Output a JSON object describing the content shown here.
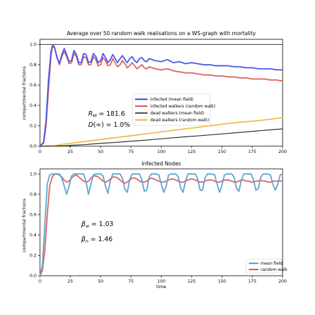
{
  "chart_data": [
    {
      "type": "line",
      "title": "Average over 50 random walk realisations on a WS-graph with mortality",
      "xlabel": "",
      "ylabel": "compartmental fractions",
      "xlim": [
        0,
        200
      ],
      "ylim": [
        0,
        1.05
      ],
      "xticks": [
        "0",
        "25",
        "50",
        "75",
        "100",
        "125",
        "150",
        "175",
        "200"
      ],
      "yticks": [
        "0.0",
        "0.2",
        "0.4",
        "0.6",
        "0.8",
        "1.0"
      ],
      "reference_line": 1.0,
      "legend_position": "center",
      "annotations": [
        "R_M = 181.6",
        "D(∞) = 1.0%"
      ],
      "series": [
        {
          "name": "infected (mean field)",
          "color": "#4455e8",
          "x": [
            0,
            3,
            5,
            7,
            9,
            10,
            11,
            12,
            14,
            16,
            18,
            20,
            22,
            24,
            26,
            28,
            30,
            32,
            34,
            36,
            38,
            40,
            42,
            44,
            46,
            48,
            50,
            52,
            54,
            56,
            58,
            60,
            62,
            64,
            66,
            68,
            70,
            72,
            74,
            76,
            78,
            80,
            82,
            84,
            86,
            88,
            90,
            95,
            100,
            105,
            110,
            115,
            120,
            125,
            130,
            135,
            140,
            145,
            150,
            155,
            160,
            165,
            170,
            175,
            180,
            185,
            190,
            195,
            200
          ],
          "values": [
            0.0,
            0.04,
            0.25,
            0.65,
            0.92,
            0.98,
            0.99,
            0.97,
            0.87,
            0.81,
            0.9,
            0.96,
            0.9,
            0.83,
            0.84,
            0.94,
            0.9,
            0.82,
            0.82,
            0.91,
            0.9,
            0.82,
            0.83,
            0.91,
            0.88,
            0.82,
            0.84,
            0.91,
            0.87,
            0.82,
            0.85,
            0.9,
            0.86,
            0.82,
            0.86,
            0.89,
            0.85,
            0.82,
            0.86,
            0.88,
            0.84,
            0.82,
            0.86,
            0.87,
            0.84,
            0.83,
            0.86,
            0.84,
            0.83,
            0.85,
            0.82,
            0.83,
            0.81,
            0.82,
            0.81,
            0.8,
            0.8,
            0.79,
            0.79,
            0.79,
            0.78,
            0.78,
            0.77,
            0.77,
            0.76,
            0.76,
            0.76,
            0.75,
            0.75
          ]
        },
        {
          "name": "infected walkers  (random walk)",
          "color": "#d9605f",
          "x": [
            0,
            3,
            5,
            7,
            9,
            10,
            11,
            12,
            14,
            16,
            18,
            20,
            22,
            24,
            26,
            28,
            30,
            32,
            34,
            36,
            38,
            40,
            42,
            44,
            46,
            48,
            50,
            52,
            54,
            56,
            58,
            60,
            62,
            64,
            66,
            68,
            70,
            72,
            74,
            76,
            78,
            80,
            82,
            84,
            86,
            88,
            90,
            95,
            100,
            105,
            110,
            115,
            120,
            125,
            130,
            135,
            140,
            145,
            150,
            155,
            160,
            165,
            170,
            175,
            180,
            185,
            190,
            195,
            200
          ],
          "values": [
            0.0,
            0.03,
            0.2,
            0.55,
            0.88,
            0.96,
            0.98,
            0.97,
            0.88,
            0.8,
            0.88,
            0.93,
            0.88,
            0.81,
            0.82,
            0.91,
            0.88,
            0.8,
            0.8,
            0.88,
            0.87,
            0.8,
            0.8,
            0.88,
            0.85,
            0.79,
            0.8,
            0.87,
            0.84,
            0.79,
            0.8,
            0.86,
            0.82,
            0.78,
            0.8,
            0.84,
            0.81,
            0.77,
            0.79,
            0.82,
            0.79,
            0.76,
            0.78,
            0.8,
            0.77,
            0.76,
            0.78,
            0.76,
            0.75,
            0.76,
            0.74,
            0.73,
            0.72,
            0.72,
            0.71,
            0.7,
            0.7,
            0.69,
            0.69,
            0.68,
            0.68,
            0.67,
            0.67,
            0.66,
            0.66,
            0.66,
            0.65,
            0.65,
            0.64
          ]
        },
        {
          "name": "dead walkers (mean field)",
          "color": "#111111",
          "x": [
            0,
            10,
            20,
            40,
            60,
            80,
            100,
            120,
            140,
            160,
            180,
            200
          ],
          "values": [
            0.0,
            0.0,
            0.004,
            0.018,
            0.035,
            0.052,
            0.072,
            0.092,
            0.11,
            0.13,
            0.15,
            0.17
          ]
        },
        {
          "name": "dead walkers (random walk)",
          "color": "#f4b942",
          "x": [
            0,
            10,
            20,
            40,
            60,
            80,
            100,
            120,
            140,
            160,
            180,
            200
          ],
          "values": [
            0.0,
            0.0,
            0.02,
            0.05,
            0.08,
            0.11,
            0.14,
            0.17,
            0.2,
            0.23,
            0.25,
            0.28
          ]
        }
      ]
    },
    {
      "type": "line",
      "title": "Infected Nodes",
      "xlabel": "time",
      "ylabel": "compartmental fractions",
      "xlim": [
        0,
        200
      ],
      "ylim": [
        0,
        1.05
      ],
      "xticks": [
        "0",
        "25",
        "50",
        "75",
        "100",
        "125",
        "150",
        "175",
        "200"
      ],
      "yticks": [
        "0.0",
        "0.2",
        "0.4",
        "0.6",
        "0.8",
        "1.0"
      ],
      "legend_position": "lower right",
      "annotations": [
        "β_w = 1.03",
        "β_n = 1.46"
      ],
      "series": [
        {
          "name": "mean field",
          "color": "#5ba3cf",
          "x": [
            0,
            2,
            4,
            6,
            8,
            10,
            12,
            14,
            16,
            18,
            20,
            22,
            24,
            26,
            28,
            30,
            32,
            34,
            36,
            38,
            40,
            42,
            44,
            46,
            48,
            50,
            52,
            54,
            56,
            58,
            60,
            62,
            64,
            66,
            68,
            70,
            72,
            74,
            76,
            78,
            80,
            82,
            84,
            86,
            88,
            90,
            92,
            94,
            96,
            98,
            100,
            102,
            104,
            106,
            108,
            110,
            112,
            114,
            116,
            118,
            120,
            122,
            124,
            126,
            128,
            130,
            132,
            134,
            136,
            138,
            140,
            142,
            144,
            146,
            148,
            150,
            152,
            154,
            156,
            158,
            160,
            162,
            164,
            166,
            168,
            170,
            172,
            174,
            176,
            178,
            180,
            182,
            184,
            186,
            188,
            190,
            192,
            194,
            196,
            198,
            200
          ],
          "values": [
            0.0,
            0.1,
            0.5,
            0.9,
            0.99,
            1.0,
            1.0,
            1.0,
            1.0,
            0.96,
            0.88,
            0.8,
            0.88,
            0.98,
            1.0,
            1.0,
            1.0,
            1.0,
            1.0,
            0.92,
            0.8,
            0.9,
            0.99,
            1.0,
            1.0,
            1.0,
            0.98,
            0.88,
            0.81,
            0.93,
            1.0,
            1.0,
            1.0,
            1.0,
            0.96,
            0.85,
            0.82,
            0.95,
            1.0,
            1.0,
            1.0,
            1.0,
            0.94,
            0.83,
            0.84,
            0.97,
            1.0,
            1.0,
            1.0,
            0.99,
            0.9,
            0.82,
            0.88,
            0.99,
            1.0,
            1.0,
            1.0,
            0.97,
            0.86,
            0.82,
            0.93,
            1.0,
            1.0,
            1.0,
            1.0,
            0.95,
            0.84,
            0.84,
            0.96,
            1.0,
            1.0,
            1.0,
            0.99,
            0.9,
            0.82,
            0.89,
            0.99,
            1.0,
            1.0,
            1.0,
            0.97,
            0.86,
            0.83,
            0.94,
            1.0,
            1.0,
            1.0,
            1.0,
            0.94,
            0.84,
            0.86,
            0.97,
            1.0,
            1.0,
            1.0,
            0.99,
            0.9,
            0.84,
            0.9,
            0.99,
            1.0
          ]
        },
        {
          "name": "random walk",
          "color": "#d9605f",
          "x": [
            0,
            2,
            4,
            6,
            8,
            10,
            12,
            14,
            16,
            18,
            20,
            22,
            24,
            26,
            28,
            30,
            32,
            34,
            36,
            38,
            40,
            42,
            44,
            46,
            48,
            50,
            52,
            54,
            56,
            58,
            60,
            62,
            64,
            66,
            68,
            70,
            72,
            74,
            76,
            78,
            80,
            82,
            84,
            86,
            88,
            90,
            92,
            94,
            96,
            98,
            100,
            102,
            104,
            106,
            108,
            110,
            112,
            114,
            116,
            118,
            120,
            122,
            124,
            126,
            128,
            130,
            132,
            134,
            136,
            138,
            140,
            142,
            144,
            146,
            148,
            150,
            152,
            154,
            156,
            158,
            160,
            162,
            164,
            166,
            168,
            170,
            172,
            174,
            176,
            178,
            180,
            182,
            184,
            186,
            188,
            190,
            192,
            194,
            196,
            198,
            200
          ],
          "values": [
            0.0,
            0.05,
            0.25,
            0.6,
            0.88,
            0.97,
            1.0,
            1.0,
            0.99,
            0.97,
            0.94,
            0.92,
            0.93,
            0.96,
            0.98,
            0.99,
            0.97,
            0.95,
            0.93,
            0.92,
            0.93,
            0.96,
            0.98,
            0.98,
            0.97,
            0.95,
            0.93,
            0.92,
            0.93,
            0.95,
            0.97,
            0.97,
            0.96,
            0.94,
            0.92,
            0.91,
            0.92,
            0.94,
            0.96,
            0.96,
            0.95,
            0.93,
            0.92,
            0.92,
            0.93,
            0.95,
            0.96,
            0.95,
            0.94,
            0.93,
            0.92,
            0.92,
            0.93,
            0.94,
            0.95,
            0.95,
            0.94,
            0.93,
            0.92,
            0.92,
            0.93,
            0.94,
            0.95,
            0.95,
            0.94,
            0.93,
            0.92,
            0.92,
            0.93,
            0.94,
            0.94,
            0.94,
            0.93,
            0.92,
            0.92,
            0.93,
            0.94,
            0.94,
            0.94,
            0.93,
            0.92,
            0.92,
            0.93,
            0.94,
            0.94,
            0.93,
            0.93,
            0.92,
            0.92,
            0.93,
            0.93,
            0.94,
            0.93,
            0.93,
            0.92,
            0.92,
            0.93,
            0.93,
            0.93,
            0.93,
            0.93
          ]
        }
      ]
    }
  ]
}
